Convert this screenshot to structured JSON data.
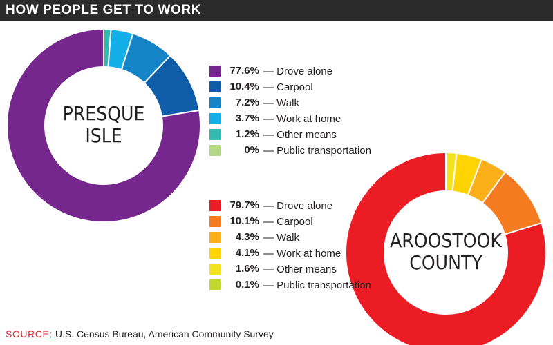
{
  "header": {
    "title": "HOW PEOPLE GET TO WORK"
  },
  "source": {
    "label": "SOURCE:",
    "text": " U.S. Census Bureau, American Community Survey"
  },
  "chart_data": [
    {
      "type": "pie",
      "center_label": [
        "PRESQUE",
        "ISLE"
      ],
      "categories": [
        "Drove alone",
        "Carpool",
        "Walk",
        "Work at home",
        "Other means",
        "Public transportation"
      ],
      "values": [
        77.6,
        10.4,
        7.2,
        3.7,
        1.2,
        0
      ],
      "value_labels": [
        "77.6%",
        "10.4%",
        "7.2%",
        "3.7%",
        "1.2%",
        "0%"
      ],
      "colors": [
        "#76278e",
        "#0f5ca8",
        "#1585c8",
        "#12aee8",
        "#32b9b0",
        "#b3d88a"
      ]
    },
    {
      "type": "pie",
      "center_label": [
        "AROOSTOOK",
        "COUNTY"
      ],
      "categories": [
        "Drove alone",
        "Carpool",
        "Walk",
        "Work at home",
        "Other means",
        "Public transportation"
      ],
      "values": [
        79.7,
        10.1,
        4.3,
        4.1,
        1.6,
        0.1
      ],
      "value_labels": [
        "79.7%",
        "10.1%",
        "4.3%",
        "4.1%",
        "1.6%",
        "0.1%"
      ],
      "colors": [
        "#ec1c24",
        "#f47b20",
        "#fbb01a",
        "#ffd400",
        "#f2e31e",
        "#c3d82e"
      ]
    }
  ]
}
